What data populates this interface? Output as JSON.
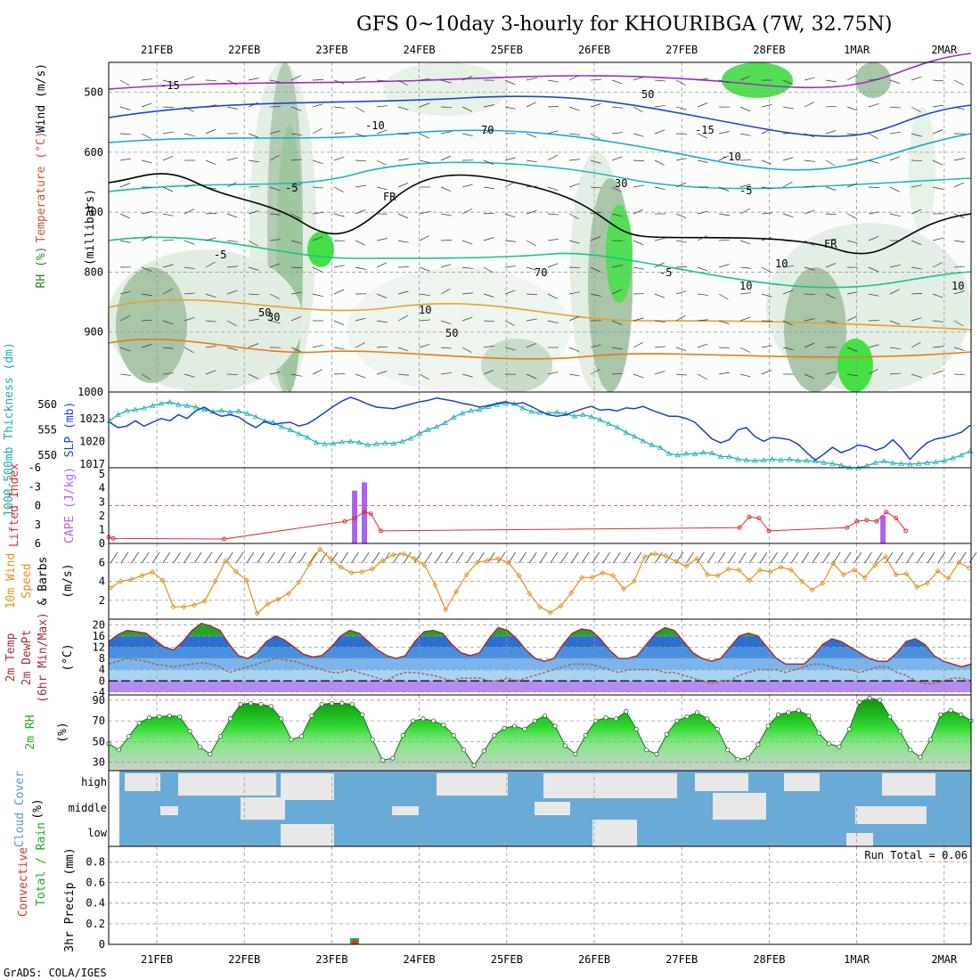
{
  "title": "GFS 0~10day 3-hourly for KHOURIBGA (7W, 32.75N)",
  "footer": "GrADS: COLA/IGES",
  "colors": {
    "grid": "#999999",
    "rh_light": "#e6f2e6",
    "rh_mid": "#a8c8a8",
    "rh_green": "#44dd44",
    "temp": "#2244cc",
    "slp": "#1a3fcc",
    "thickness": "#22b0b0",
    "lifted": "#d93030",
    "cape": "#b060f0",
    "wind": "#e09020",
    "temp2m": "#993333",
    "dewpt": "#996655",
    "rh2m": "#22aa22",
    "cloud": "#6aaad6",
    "cloud_bg": "#e8e8e8"
  },
  "chart_data": [
    {
      "type": "heatmap",
      "name": "upper",
      "x_ticks": [
        "21FEB",
        "22FEB",
        "23FEB",
        "24FEB",
        "25FEB",
        "26FEB",
        "27FEB",
        "28FEB",
        "1MAR",
        "2MAR"
      ],
      "y_ticks": [
        "500",
        "600",
        "700",
        "800",
        "900",
        "1000"
      ],
      "ylabel_parts": [
        "RH (%)",
        "Temperature (°C)",
        "Wind (m/s)"
      ],
      "ylabel_units": "(millibars)",
      "contour_labels": [
        "-15",
        "-15",
        "-10",
        "-10",
        "-5",
        "-5",
        "-5",
        "-5",
        "10",
        "FR",
        "FR",
        "10",
        "30",
        "50",
        "70",
        "30",
        "10",
        "10",
        "50",
        "50",
        "70"
      ],
      "ylim": [
        1000,
        450
      ]
    },
    {
      "type": "line",
      "name": "slp-thickness",
      "ylabel_left": "1000-500mb Thickness (dm)",
      "ylabel_right": "SLP (mb)",
      "left_ticks": [
        "560",
        "555",
        "550"
      ],
      "right_ticks": [
        "1023",
        "1020",
        "1017"
      ],
      "series": [
        {
          "name": "SLP",
          "values": [
            1022.5,
            1021.8,
            1022.0,
            1022.7,
            1022.0,
            1022.5,
            1023.0,
            1022.7,
            1023.5,
            1023.0,
            1024.0,
            1024.5,
            1023.8,
            1023.3,
            1023.5,
            1023.2,
            1022.4,
            1021.8,
            1022.6,
            1022.2,
            1022.4,
            1022.5,
            1022.0,
            1022.3,
            1023.0,
            1023.8,
            1024.6,
            1025.3,
            1025.8,
            1025.4,
            1024.9,
            1024.5,
            1024.4,
            1024.3,
            1024.6,
            1024.9,
            1025.2,
            1025.4,
            1025.7,
            1025.5,
            1025.3,
            1025.0,
            1024.8,
            1024.5,
            1024.7,
            1025.0,
            1025.2,
            1024.9,
            1025.1,
            1024.6,
            1024.0,
            1023.5,
            1023.3,
            1023.5,
            1023.9,
            1024.3,
            1024.6,
            1024.1,
            1024.2,
            1024.0,
            1024.4,
            1024.3,
            1024.6,
            1024.1,
            1023.7,
            1023.3,
            1023.3,
            1023.0,
            1022.5,
            1021.4,
            1020.3,
            1019.8,
            1020.2,
            1021.5,
            1021.8,
            1020.6,
            1020.0,
            1020.5,
            1020.4,
            1020.2,
            1019.6,
            1018.5,
            1017.5,
            1018.3,
            1019.2,
            1018.5,
            1018.9,
            1019.5,
            1019.3,
            1018.8,
            1019.2,
            1020.2,
            1019.1,
            1017.6,
            1018.8,
            1019.8,
            1020.3,
            1020.5,
            1020.8,
            1021.2,
            1022.1
          ]
        },
        {
          "name": "Thickness",
          "values": [
            556.8,
            558.0,
            558.8,
            559.0,
            559.3,
            559.8,
            560.2,
            560.5,
            560.0,
            559.8,
            559.5,
            559.0,
            558.6,
            558.8,
            558.5,
            558.7,
            558.2,
            557.6,
            556.8,
            556.5,
            555.6,
            555.0,
            554.2,
            553.5,
            552.5,
            552.2,
            552.3,
            552.6,
            552.7,
            552.5,
            552.0,
            552.2,
            552.4,
            552.3,
            552.7,
            553.3,
            554.3,
            555.0,
            555.6,
            556.4,
            557.5,
            558.3,
            558.8,
            559.0,
            559.6,
            560.0,
            560.3,
            560.2,
            559.3,
            558.6,
            558.4,
            558.3,
            558.5,
            558.2,
            557.7,
            558.0,
            557.6,
            557.0,
            556.2,
            555.5,
            554.5,
            553.7,
            552.8,
            552.0,
            551.5,
            550.3,
            550.0,
            550.3,
            550.2,
            550.5,
            550.4,
            549.7,
            549.7,
            549.2,
            549.0,
            548.9,
            549.0,
            549.2,
            549.0,
            549.2,
            548.9,
            548.9,
            548.8,
            548.5,
            548.3,
            548.0,
            547.5,
            547.5,
            547.9,
            548.5,
            548.8,
            548.4,
            548.3,
            548.2,
            548.3,
            548.5,
            548.6,
            548.9,
            549.4,
            550.0,
            550.8
          ]
        }
      ]
    },
    {
      "type": "bar",
      "name": "lifted-cape",
      "ylabel_left": "Lifted Index",
      "ylabel_right": "CAPE (J/kg)",
      "left_ticks": [
        "-6",
        "-3",
        "0",
        "3",
        "6"
      ],
      "right_ticks": [
        "5",
        "4",
        "3",
        "2",
        "1",
        "0"
      ],
      "series": [
        {
          "name": "CAPE",
          "values": [
            {
              "t": 61,
              "v": 3.8
            },
            {
              "t": 64,
              "v": 4.4
            },
            {
              "t": 223,
              "v": 2.0
            }
          ]
        },
        {
          "name": "Lifted Index",
          "values": [
            [
              -14.4,
              5
            ],
            [
              -13,
              5.2
            ],
            [
              21,
              5.3
            ],
            [
              58,
              2.5
            ],
            [
              61,
              2
            ],
            [
              64,
              1
            ],
            [
              66,
              1.3
            ],
            [
              69,
              4
            ],
            [
              179,
              3.5
            ],
            [
              182,
              1.8
            ],
            [
              185,
              2
            ],
            [
              188,
              4
            ],
            [
              212,
              3.5
            ],
            [
              215,
              2.5
            ],
            [
              218,
              2.3
            ],
            [
              221,
              2.5
            ],
            [
              224,
              1
            ],
            [
              227,
              2
            ],
            [
              230,
              4
            ]
          ]
        }
      ]
    },
    {
      "type": "line",
      "name": "wind10m",
      "ylabel": "10m Wind Speed & Barbs (m/s)",
      "ylabel_parts": [
        "10m Wind",
        "Speed",
        "& Barbs",
        "(m/s)"
      ],
      "y_ticks": [
        "6",
        "4",
        "2"
      ],
      "series": [
        {
          "name": "Speed",
          "values": [
            3.3,
            4.0,
            4.2,
            4.6,
            5.0,
            4.1,
            1.3,
            1.3,
            1.5,
            1.9,
            4.0,
            6.2,
            5.0,
            4.1,
            0.6,
            1.6,
            2.1,
            2.7,
            3.9,
            5.8,
            7.4,
            6.4,
            5.5,
            4.9,
            5.0,
            5.3,
            6.2,
            6.8,
            6.9,
            6.4,
            5.7,
            3.6,
            1.0,
            2.9,
            4.7,
            6.0,
            6.2,
            6.4,
            6.0,
            4.6,
            2.7,
            1.3,
            0.7,
            1.4,
            2.8,
            4.4,
            4.4,
            4.9,
            4.6,
            3.2,
            4.0,
            6.6,
            6.9,
            6.7,
            6.1,
            5.6,
            6.4,
            4.7,
            4.6,
            5.3,
            5.2,
            4.1,
            5.2,
            5.0,
            5.5,
            5.2,
            4.0,
            3.1,
            3.8,
            5.9,
            4.7,
            5.2,
            4.4,
            5.7,
            6.6,
            4.7,
            4.8,
            3.4,
            3.8,
            5.1,
            4.3,
            6.0,
            5.4
          ]
        }
      ]
    },
    {
      "type": "area",
      "name": "temp2m",
      "ylabel_parts": [
        "2m Temp",
        "2m DewPt",
        "(6hr Min/Max)",
        "(°C)"
      ],
      "y_ticks": [
        "20",
        "16",
        "12",
        "8",
        "4",
        "0",
        "-4"
      ],
      "series": [
        {
          "name": "Temp",
          "values": [
            14,
            16.5,
            18,
            17.5,
            17,
            14.5,
            12,
            11,
            14,
            18,
            20.5,
            19.5,
            18,
            13,
            9,
            8,
            10,
            14,
            16,
            14.5,
            12,
            9.5,
            8.5,
            9,
            12,
            16,
            18,
            17,
            14,
            11,
            9,
            8,
            9,
            14,
            17.5,
            18,
            17,
            13,
            10,
            9,
            10,
            15,
            19,
            18,
            15,
            11,
            8,
            7,
            8,
            13,
            17,
            18.5,
            18,
            15,
            11,
            8,
            8,
            9,
            13,
            17,
            19,
            18,
            14,
            10,
            8,
            7,
            8,
            12,
            16,
            17,
            16,
            12,
            8,
            6,
            6,
            6,
            9,
            13,
            15,
            14,
            12,
            10,
            8,
            7,
            7,
            10,
            14,
            15,
            13,
            9,
            7,
            6,
            5,
            6
          ]
        },
        {
          "name": "DewPt",
          "values": [
            6,
            7,
            8,
            7.5,
            7,
            6,
            5.5,
            5,
            5.5,
            6,
            6.5,
            6,
            5,
            3,
            4,
            5,
            6,
            7,
            8,
            7.5,
            7,
            6,
            5,
            4,
            3,
            3,
            4,
            3,
            2,
            1,
            0,
            2,
            3,
            3,
            2.5,
            2,
            1,
            0,
            1,
            1,
            1,
            0,
            0,
            1,
            0,
            1,
            2,
            3,
            4,
            5,
            6,
            6,
            6,
            5,
            4,
            3,
            4,
            4,
            4,
            4,
            3,
            3,
            2,
            1,
            0,
            -1,
            0,
            0,
            2,
            3,
            4,
            4,
            4,
            3,
            4,
            5,
            6,
            6,
            5,
            4,
            4,
            3,
            4,
            5,
            5,
            3,
            2,
            0,
            -1,
            -1,
            0,
            1,
            1,
            0
          ]
        }
      ]
    },
    {
      "type": "area",
      "name": "rh2m",
      "ylabel": "2m RH",
      "ylabel_unit": "(%)",
      "y_ticks": [
        "90",
        "70",
        "50",
        "30"
      ],
      "series": [
        {
          "name": "RH",
          "values": [
            48,
            42,
            55,
            68,
            73,
            74,
            75,
            74,
            60,
            45,
            38,
            55,
            72,
            86,
            87,
            86,
            84,
            72,
            52,
            55,
            75,
            86,
            87,
            87,
            86,
            76,
            52,
            32,
            34,
            56,
            70,
            72,
            70,
            66,
            56,
            42,
            27,
            41,
            56,
            63,
            65,
            62,
            70,
            75,
            65,
            46,
            38,
            56,
            70,
            73,
            72,
            79,
            62,
            42,
            38,
            57,
            70,
            74,
            78,
            72,
            62,
            42,
            33,
            34,
            47,
            65,
            76,
            78,
            80,
            75,
            58,
            48,
            45,
            62,
            88,
            92,
            90,
            74,
            60,
            42,
            35,
            52,
            76,
            80,
            76,
            70
          ]
        }
      ]
    },
    {
      "type": "heatmap",
      "name": "cloud",
      "ylabel": "Cloud Cover",
      "ylabel_unit": "(%)",
      "y_ticks": [
        "high",
        "middle",
        "low"
      ]
    },
    {
      "type": "bar",
      "name": "precip",
      "ylabel_parts": [
        "Total / Rain",
        "Convective"
      ],
      "ylabel": "3hr Precip (mm)",
      "y_ticks": [
        "0.8",
        "0.6",
        "0.4",
        "0.2",
        "0"
      ],
      "annotation": "Run Total = 0.06",
      "x_ticks": [
        "21FEB",
        "22FEB",
        "23FEB",
        "24FEB",
        "25FEB",
        "26FEB",
        "27FEB",
        "28FEB",
        "1MAR",
        "2MAR"
      ],
      "values": [
        {
          "t": 61,
          "total": 0.06,
          "conv": 0.04
        }
      ]
    }
  ]
}
